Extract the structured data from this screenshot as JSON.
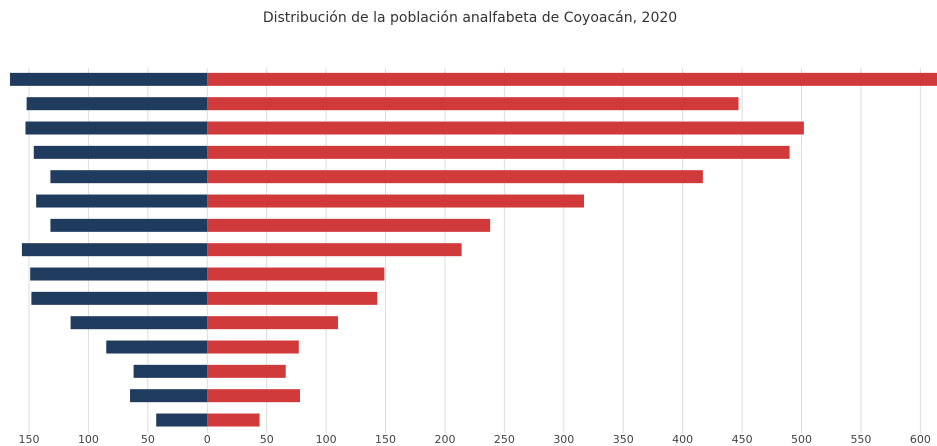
{
  "chart_data": {
    "type": "bar_diverging",
    "title": "Distribución de la población analfabeta de Coyoacán, 2020",
    "categories": [
      null,
      null,
      null,
      null,
      null,
      null,
      null,
      null,
      null,
      null,
      null,
      null,
      null,
      null,
      null
    ],
    "series": [
      {
        "color": "#1f3c5e",
        "values": [
          -166,
          -152,
          -153,
          -146,
          -132,
          -144,
          -132,
          -156,
          -149,
          -148,
          -115,
          -85,
          -62,
          -65,
          -43
        ]
      },
      {
        "color": "#d13a3a",
        "values": [
          614,
          447,
          502,
          490,
          417,
          317,
          238,
          214,
          149,
          143,
          110,
          77,
          66,
          78,
          44
        ]
      }
    ],
    "xlim": [
      -166,
      614
    ],
    "xticks": [
      {
        "value": -150,
        "label": "150"
      },
      {
        "value": -100,
        "label": "100"
      },
      {
        "value": -50,
        "label": "50"
      },
      0,
      50,
      100,
      150,
      200,
      250,
      300,
      350,
      400,
      450,
      500,
      550,
      600
    ],
    "grid": true
  }
}
